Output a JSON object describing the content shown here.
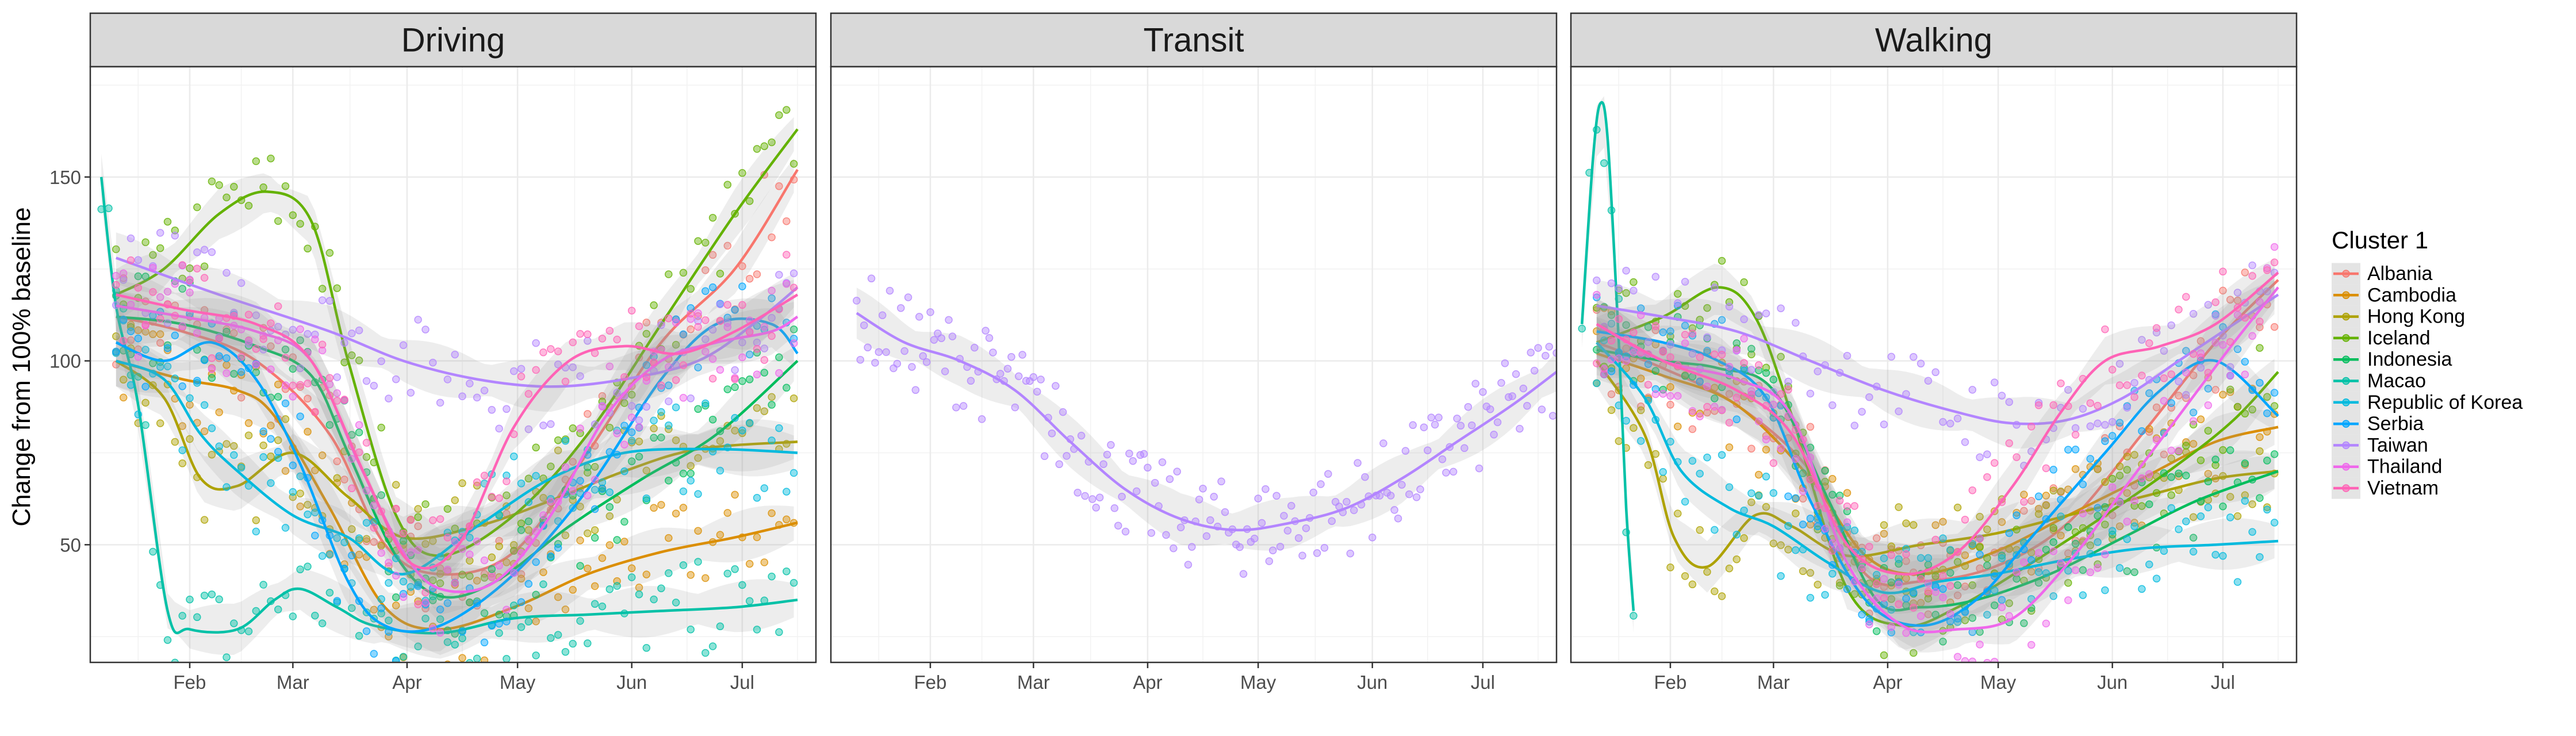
{
  "chart_data": {
    "type": "scatter",
    "facets": [
      "Driving",
      "Transit",
      "Walking"
    ],
    "ylabel": "Change from 100% baseline",
    "xlabel": "",
    "x_ticks": [
      "Feb",
      "Mar",
      "Apr",
      "May",
      "Jun",
      "Jul"
    ],
    "x_tick_days": [
      32,
      60,
      91,
      121,
      152,
      182
    ],
    "xlim": [
      5,
      202
    ],
    "y_ticks": [
      50,
      100,
      150
    ],
    "ylim": [
      18,
      180
    ],
    "grid": true,
    "legend": {
      "title": "Cluster 1",
      "position": "right"
    },
    "series": [
      {
        "name": "Albania",
        "color": "#F8766D",
        "Driving": [
          [
            12,
            112
          ],
          [
            30,
            108
          ],
          [
            50,
            100
          ],
          [
            70,
            80
          ],
          [
            85,
            50
          ],
          [
            100,
            42
          ],
          [
            120,
            48
          ],
          [
            140,
            75
          ],
          [
            160,
            105
          ],
          [
            180,
            125
          ],
          [
            197,
            152
          ]
        ],
        "Walking": [
          [
            12,
            105
          ],
          [
            30,
            98
          ],
          [
            50,
            88
          ],
          [
            70,
            70
          ],
          [
            85,
            42
          ],
          [
            100,
            40
          ],
          [
            120,
            44
          ],
          [
            140,
            56
          ],
          [
            160,
            80
          ],
          [
            180,
            105
          ],
          [
            197,
            122
          ]
        ]
      },
      {
        "name": "Cambodia",
        "color": "#DB8E00",
        "Driving": [
          [
            12,
            100
          ],
          [
            30,
            95
          ],
          [
            45,
            92
          ],
          [
            55,
            85
          ],
          [
            70,
            60
          ],
          [
            85,
            33
          ],
          [
            100,
            27
          ],
          [
            120,
            33
          ],
          [
            140,
            42
          ],
          [
            160,
            48
          ],
          [
            180,
            52
          ],
          [
            197,
            56
          ]
        ],
        "Walking": [
          [
            12,
            102
          ],
          [
            30,
            96
          ],
          [
            50,
            88
          ],
          [
            70,
            68
          ],
          [
            85,
            47
          ],
          [
            100,
            42
          ],
          [
            120,
            48
          ],
          [
            140,
            58
          ],
          [
            160,
            68
          ],
          [
            180,
            78
          ],
          [
            197,
            82
          ]
        ]
      },
      {
        "name": "Hong Kong",
        "color": "#AEA200",
        "Driving": [
          [
            12,
            100
          ],
          [
            25,
            90
          ],
          [
            35,
            68
          ],
          [
            45,
            66
          ],
          [
            60,
            75
          ],
          [
            75,
            63
          ],
          [
            90,
            52
          ],
          [
            110,
            55
          ],
          [
            130,
            62
          ],
          [
            150,
            70
          ],
          [
            170,
            76
          ],
          [
            197,
            78
          ]
        ],
        "Walking": [
          [
            12,
            100
          ],
          [
            25,
            80
          ],
          [
            33,
            52
          ],
          [
            42,
            44
          ],
          [
            55,
            58
          ],
          [
            65,
            55
          ],
          [
            80,
            47
          ],
          [
            100,
            50
          ],
          [
            120,
            53
          ],
          [
            140,
            58
          ],
          [
            160,
            63
          ],
          [
            180,
            68
          ],
          [
            197,
            70
          ]
        ]
      },
      {
        "name": "Iceland",
        "color": "#64B200",
        "Driving": [
          [
            12,
            118
          ],
          [
            25,
            125
          ],
          [
            40,
            140
          ],
          [
            53,
            146
          ],
          [
            65,
            138
          ],
          [
            75,
            100
          ],
          [
            88,
            58
          ],
          [
            100,
            47
          ],
          [
            120,
            58
          ],
          [
            140,
            80
          ],
          [
            160,
            110
          ],
          [
            180,
            140
          ],
          [
            197,
            163
          ]
        ],
        "Walking": [
          [
            12,
            105
          ],
          [
            30,
            112
          ],
          [
            45,
            120
          ],
          [
            55,
            112
          ],
          [
            65,
            85
          ],
          [
            80,
            38
          ],
          [
            95,
            28
          ],
          [
            110,
            33
          ],
          [
            130,
            45
          ],
          [
            150,
            58
          ],
          [
            170,
            72
          ],
          [
            185,
            84
          ],
          [
            197,
            97
          ]
        ]
      },
      {
        "name": "Indonesia",
        "color": "#00BD5C",
        "Driving": [
          [
            12,
            112
          ],
          [
            30,
            110
          ],
          [
            50,
            104
          ],
          [
            65,
            96
          ],
          [
            75,
            75
          ],
          [
            88,
            47
          ],
          [
            100,
            36
          ],
          [
            115,
            40
          ],
          [
            135,
            55
          ],
          [
            155,
            68
          ],
          [
            175,
            80
          ],
          [
            197,
            100
          ]
        ],
        "Walking": [
          [
            12,
            103
          ],
          [
            30,
            100
          ],
          [
            45,
            98
          ],
          [
            60,
            92
          ],
          [
            75,
            62
          ],
          [
            88,
            35
          ],
          [
            100,
            33
          ],
          [
            115,
            35
          ],
          [
            135,
            42
          ],
          [
            155,
            52
          ],
          [
            175,
            62
          ],
          [
            197,
            70
          ]
        ]
      },
      {
        "name": "Macao",
        "color": "#00C1A7",
        "Driving": [
          [
            8,
            150
          ],
          [
            12,
            115
          ],
          [
            18,
            88
          ],
          [
            26,
            32
          ],
          [
            32,
            27
          ],
          [
            45,
            27
          ],
          [
            55,
            35
          ],
          [
            62,
            38
          ],
          [
            72,
            33
          ],
          [
            82,
            28
          ],
          [
            100,
            26
          ],
          [
            120,
            30
          ],
          [
            140,
            31
          ],
          [
            160,
            32
          ],
          [
            180,
            33
          ],
          [
            197,
            35
          ]
        ],
        "Walking": [
          [
            8,
            110
          ],
          [
            11,
            155
          ],
          [
            13,
            170
          ],
          [
            15,
            160
          ],
          [
            18,
            105
          ],
          [
            20,
            60
          ],
          [
            22,
            32
          ]
        ]
      },
      {
        "name": "Republic of Korea",
        "color": "#00BADE",
        "Driving": [
          [
            12,
            100
          ],
          [
            25,
            95
          ],
          [
            35,
            80
          ],
          [
            45,
            70
          ],
          [
            60,
            58
          ],
          [
            75,
            52
          ],
          [
            90,
            42
          ],
          [
            110,
            55
          ],
          [
            130,
            68
          ],
          [
            150,
            75
          ],
          [
            175,
            76
          ],
          [
            197,
            75
          ]
        ],
        "Walking": [
          [
            12,
            105
          ],
          [
            25,
            90
          ],
          [
            35,
            70
          ],
          [
            48,
            60
          ],
          [
            60,
            55
          ],
          [
            75,
            45
          ],
          [
            90,
            37
          ],
          [
            105,
            40
          ],
          [
            120,
            42
          ],
          [
            140,
            46
          ],
          [
            160,
            49
          ],
          [
            180,
            50
          ],
          [
            197,
            51
          ]
        ]
      },
      {
        "name": "Serbia",
        "color": "#00A6FF",
        "Driving": [
          [
            12,
            105
          ],
          [
            25,
            100
          ],
          [
            38,
            105
          ],
          [
            50,
            95
          ],
          [
            62,
            72
          ],
          [
            75,
            40
          ],
          [
            85,
            28
          ],
          [
            100,
            28
          ],
          [
            120,
            42
          ],
          [
            140,
            65
          ],
          [
            160,
            95
          ],
          [
            175,
            110
          ],
          [
            190,
            110
          ],
          [
            197,
            102
          ]
        ],
        "Walking": [
          [
            12,
            108
          ],
          [
            30,
            105
          ],
          [
            45,
            100
          ],
          [
            58,
            90
          ],
          [
            70,
            62
          ],
          [
            85,
            35
          ],
          [
            100,
            28
          ],
          [
            115,
            35
          ],
          [
            130,
            52
          ],
          [
            150,
            75
          ],
          [
            165,
            92
          ],
          [
            180,
            100
          ],
          [
            197,
            85
          ]
        ]
      },
      {
        "name": "Taiwan",
        "color": "#B385FF",
        "Driving": [
          [
            12,
            128
          ],
          [
            40,
            118
          ],
          [
            70,
            108
          ],
          [
            90,
            100
          ],
          [
            110,
            95
          ],
          [
            130,
            93
          ],
          [
            150,
            95
          ],
          [
            170,
            100
          ],
          [
            185,
            110
          ],
          [
            197,
            120
          ]
        ],
        "Transit": [
          [
            12,
            113
          ],
          [
            25,
            105
          ],
          [
            40,
            100
          ],
          [
            55,
            92
          ],
          [
            70,
            78
          ],
          [
            85,
            65
          ],
          [
            100,
            57
          ],
          [
            115,
            54
          ],
          [
            130,
            56
          ],
          [
            145,
            60
          ],
          [
            160,
            68
          ],
          [
            175,
            78
          ],
          [
            190,
            88
          ],
          [
            202,
            97
          ]
        ],
        "Walking": [
          [
            12,
            115
          ],
          [
            30,
            112
          ],
          [
            50,
            108
          ],
          [
            70,
            100
          ],
          [
            90,
            92
          ],
          [
            110,
            86
          ],
          [
            125,
            83
          ],
          [
            140,
            84
          ],
          [
            155,
            90
          ],
          [
            170,
            100
          ],
          [
            185,
            110
          ],
          [
            197,
            118
          ]
        ]
      },
      {
        "name": "Thailand",
        "color": "#EF67EB",
        "Driving": [
          [
            12,
            115
          ],
          [
            30,
            112
          ],
          [
            50,
            108
          ],
          [
            65,
            100
          ],
          [
            78,
            72
          ],
          [
            90,
            48
          ],
          [
            100,
            38
          ],
          [
            115,
            40
          ],
          [
            130,
            58
          ],
          [
            145,
            85
          ],
          [
            160,
            100
          ],
          [
            175,
            105
          ],
          [
            190,
            108
          ],
          [
            197,
            112
          ]
        ],
        "Walking": [
          [
            12,
            110
          ],
          [
            30,
            100
          ],
          [
            50,
            95
          ],
          [
            65,
            85
          ],
          [
            80,
            45
          ],
          [
            95,
            28
          ],
          [
            110,
            27
          ],
          [
            125,
            30
          ],
          [
            140,
            45
          ],
          [
            155,
            65
          ],
          [
            170,
            85
          ],
          [
            185,
            105
          ],
          [
            197,
            120
          ]
        ]
      },
      {
        "name": "Vietnam",
        "color": "#FF63B6",
        "Driving": [
          [
            12,
            118
          ],
          [
            30,
            114
          ],
          [
            50,
            110
          ],
          [
            65,
            100
          ],
          [
            80,
            68
          ],
          [
            92,
            45
          ],
          [
            105,
            50
          ],
          [
            120,
            82
          ],
          [
            135,
            100
          ],
          [
            150,
            104
          ],
          [
            165,
            102
          ],
          [
            180,
            108
          ],
          [
            197,
            118
          ]
        ],
        "Walking": [
          [
            12,
            110
          ],
          [
            30,
            100
          ],
          [
            50,
            92
          ],
          [
            65,
            80
          ],
          [
            80,
            50
          ],
          [
            95,
            42
          ],
          [
            110,
            48
          ],
          [
            125,
            66
          ],
          [
            138,
            86
          ],
          [
            150,
            100
          ],
          [
            165,
            104
          ],
          [
            180,
            110
          ],
          [
            197,
            124
          ]
        ]
      }
    ]
  }
}
